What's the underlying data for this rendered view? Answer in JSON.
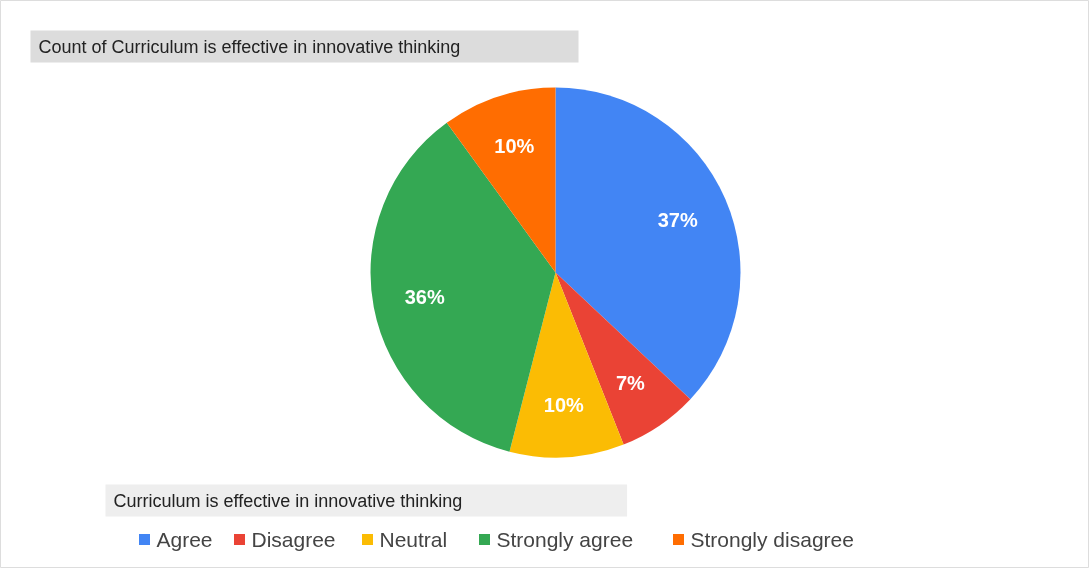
{
  "chart_data": {
    "type": "pie",
    "title": "Count of Curriculum is effective in innovative thinking",
    "legend_title": "Curriculum is effective in innovative thinking",
    "categories": [
      "Agree",
      "Disagree",
      "Neutral",
      "Strongly agree",
      "Strongly disagree"
    ],
    "values": [
      37,
      7,
      10,
      36,
      10
    ],
    "colors": [
      "#4285f4",
      "#ea4335",
      "#fbbc04",
      "#34a853",
      "#ff6d01"
    ],
    "value_labels": [
      "37%",
      "7%",
      "10%",
      "36%",
      "10%"
    ],
    "legend": "bottom"
  }
}
